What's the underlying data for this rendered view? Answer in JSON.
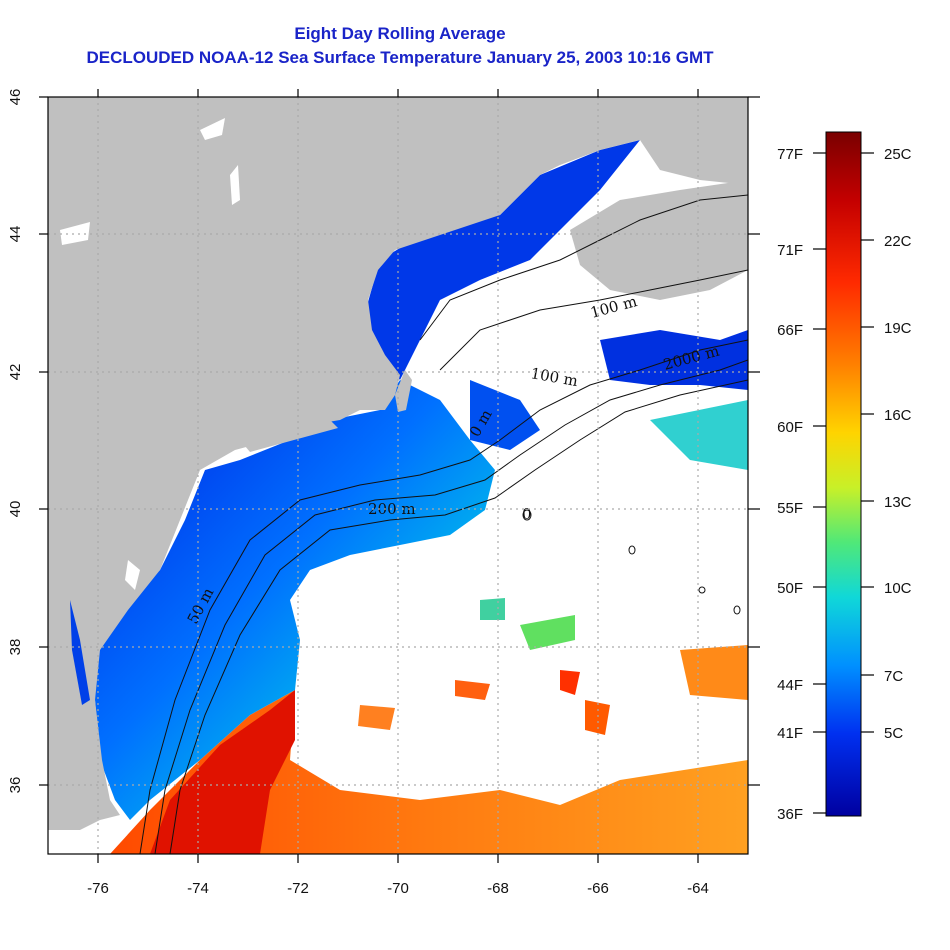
{
  "title": "Eight Day Rolling Average",
  "subtitle": "DECLOUDED NOAA-12 Sea Surface Temperature January 25, 2003 10:16 GMT",
  "map": {
    "lon_range": [
      -77,
      -63
    ],
    "lat_range": [
      35,
      46
    ],
    "x_ticks": [
      "-76",
      "-74",
      "-72",
      "-70",
      "-68",
      "-66",
      "-64"
    ],
    "y_ticks": [
      "36",
      "38",
      "40",
      "42",
      "44",
      "46"
    ],
    "gridlines": "dotted",
    "land_color": "#c0c0c0",
    "cloud_color": "#ffffff",
    "contour_labels": [
      "50 m",
      "200 m",
      "100 m",
      "100 m",
      "2000 m",
      "0 m",
      "0"
    ]
  },
  "colorbar": {
    "fahrenheit_labels": [
      "77F",
      "71F",
      "66F",
      "60F",
      "55F",
      "50F",
      "44F",
      "41F",
      "36F"
    ],
    "celsius_labels": [
      "25C",
      "22C",
      "19C",
      "16C",
      "13C",
      "10C",
      "7C",
      "5C"
    ],
    "colors": [
      "#7a0000",
      "#c40000",
      "#ff2a00",
      "#ff8000",
      "#ffd400",
      "#c8f028",
      "#50e878",
      "#10d8d8",
      "#0090ff",
      "#0030f0",
      "#0000a0"
    ]
  }
}
